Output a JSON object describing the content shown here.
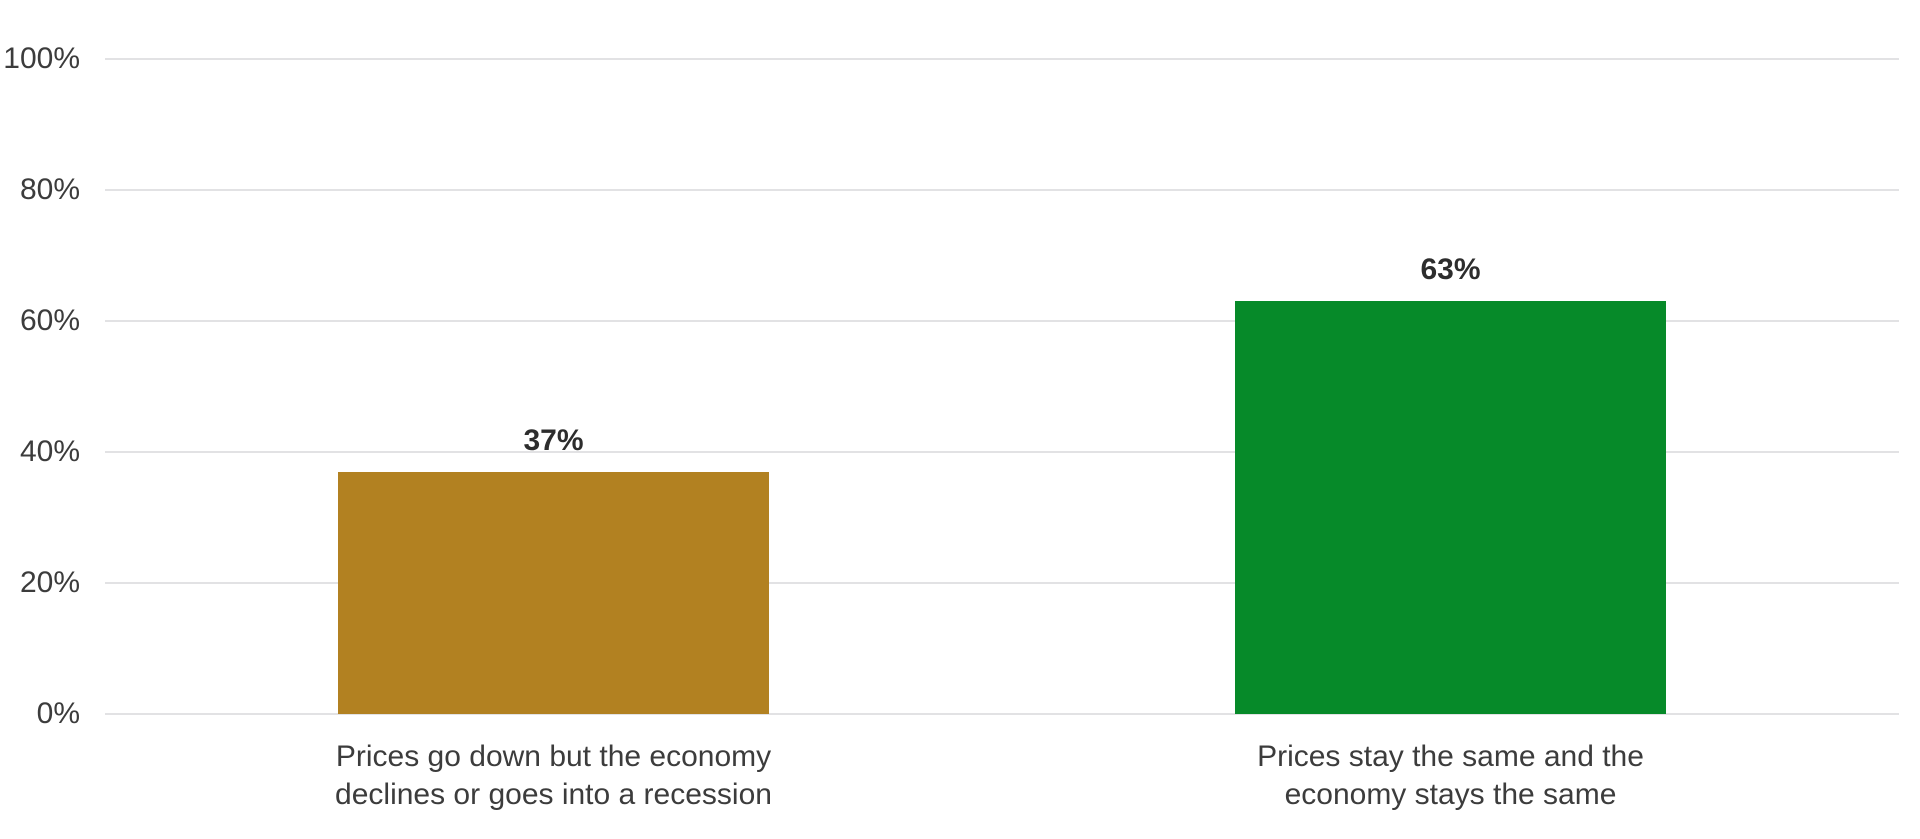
{
  "chart_data": {
    "type": "bar",
    "categories": [
      "Prices go down but the economy declines or goes into a recession",
      "Prices stay the same and the economy stays the same"
    ],
    "category_lines": [
      [
        "Prices go down but the economy",
        "declines or goes into a recession"
      ],
      [
        "Prices stay the same and the",
        "economy stays the same"
      ]
    ],
    "values": [
      37,
      63
    ],
    "value_labels": [
      "37%",
      "63%"
    ],
    "bar_colors": [
      "#b28121",
      "#068a29"
    ],
    "yticks": [
      {
        "value": 0,
        "label": "0%"
      },
      {
        "value": 20,
        "label": "20%"
      },
      {
        "value": 40,
        "label": "40%"
      },
      {
        "value": 60,
        "label": "60%"
      },
      {
        "value": 80,
        "label": "80%"
      },
      {
        "value": 100,
        "label": "100%"
      }
    ],
    "ylim": [
      0,
      100
    ],
    "grid": true,
    "legend": false,
    "xlabel": "",
    "ylabel": ""
  },
  "colors": {
    "background": "#ffffff",
    "gridline": "#e2e2e4",
    "axis_text": "#3c3c3c",
    "value_text": "#2d2d2d"
  }
}
